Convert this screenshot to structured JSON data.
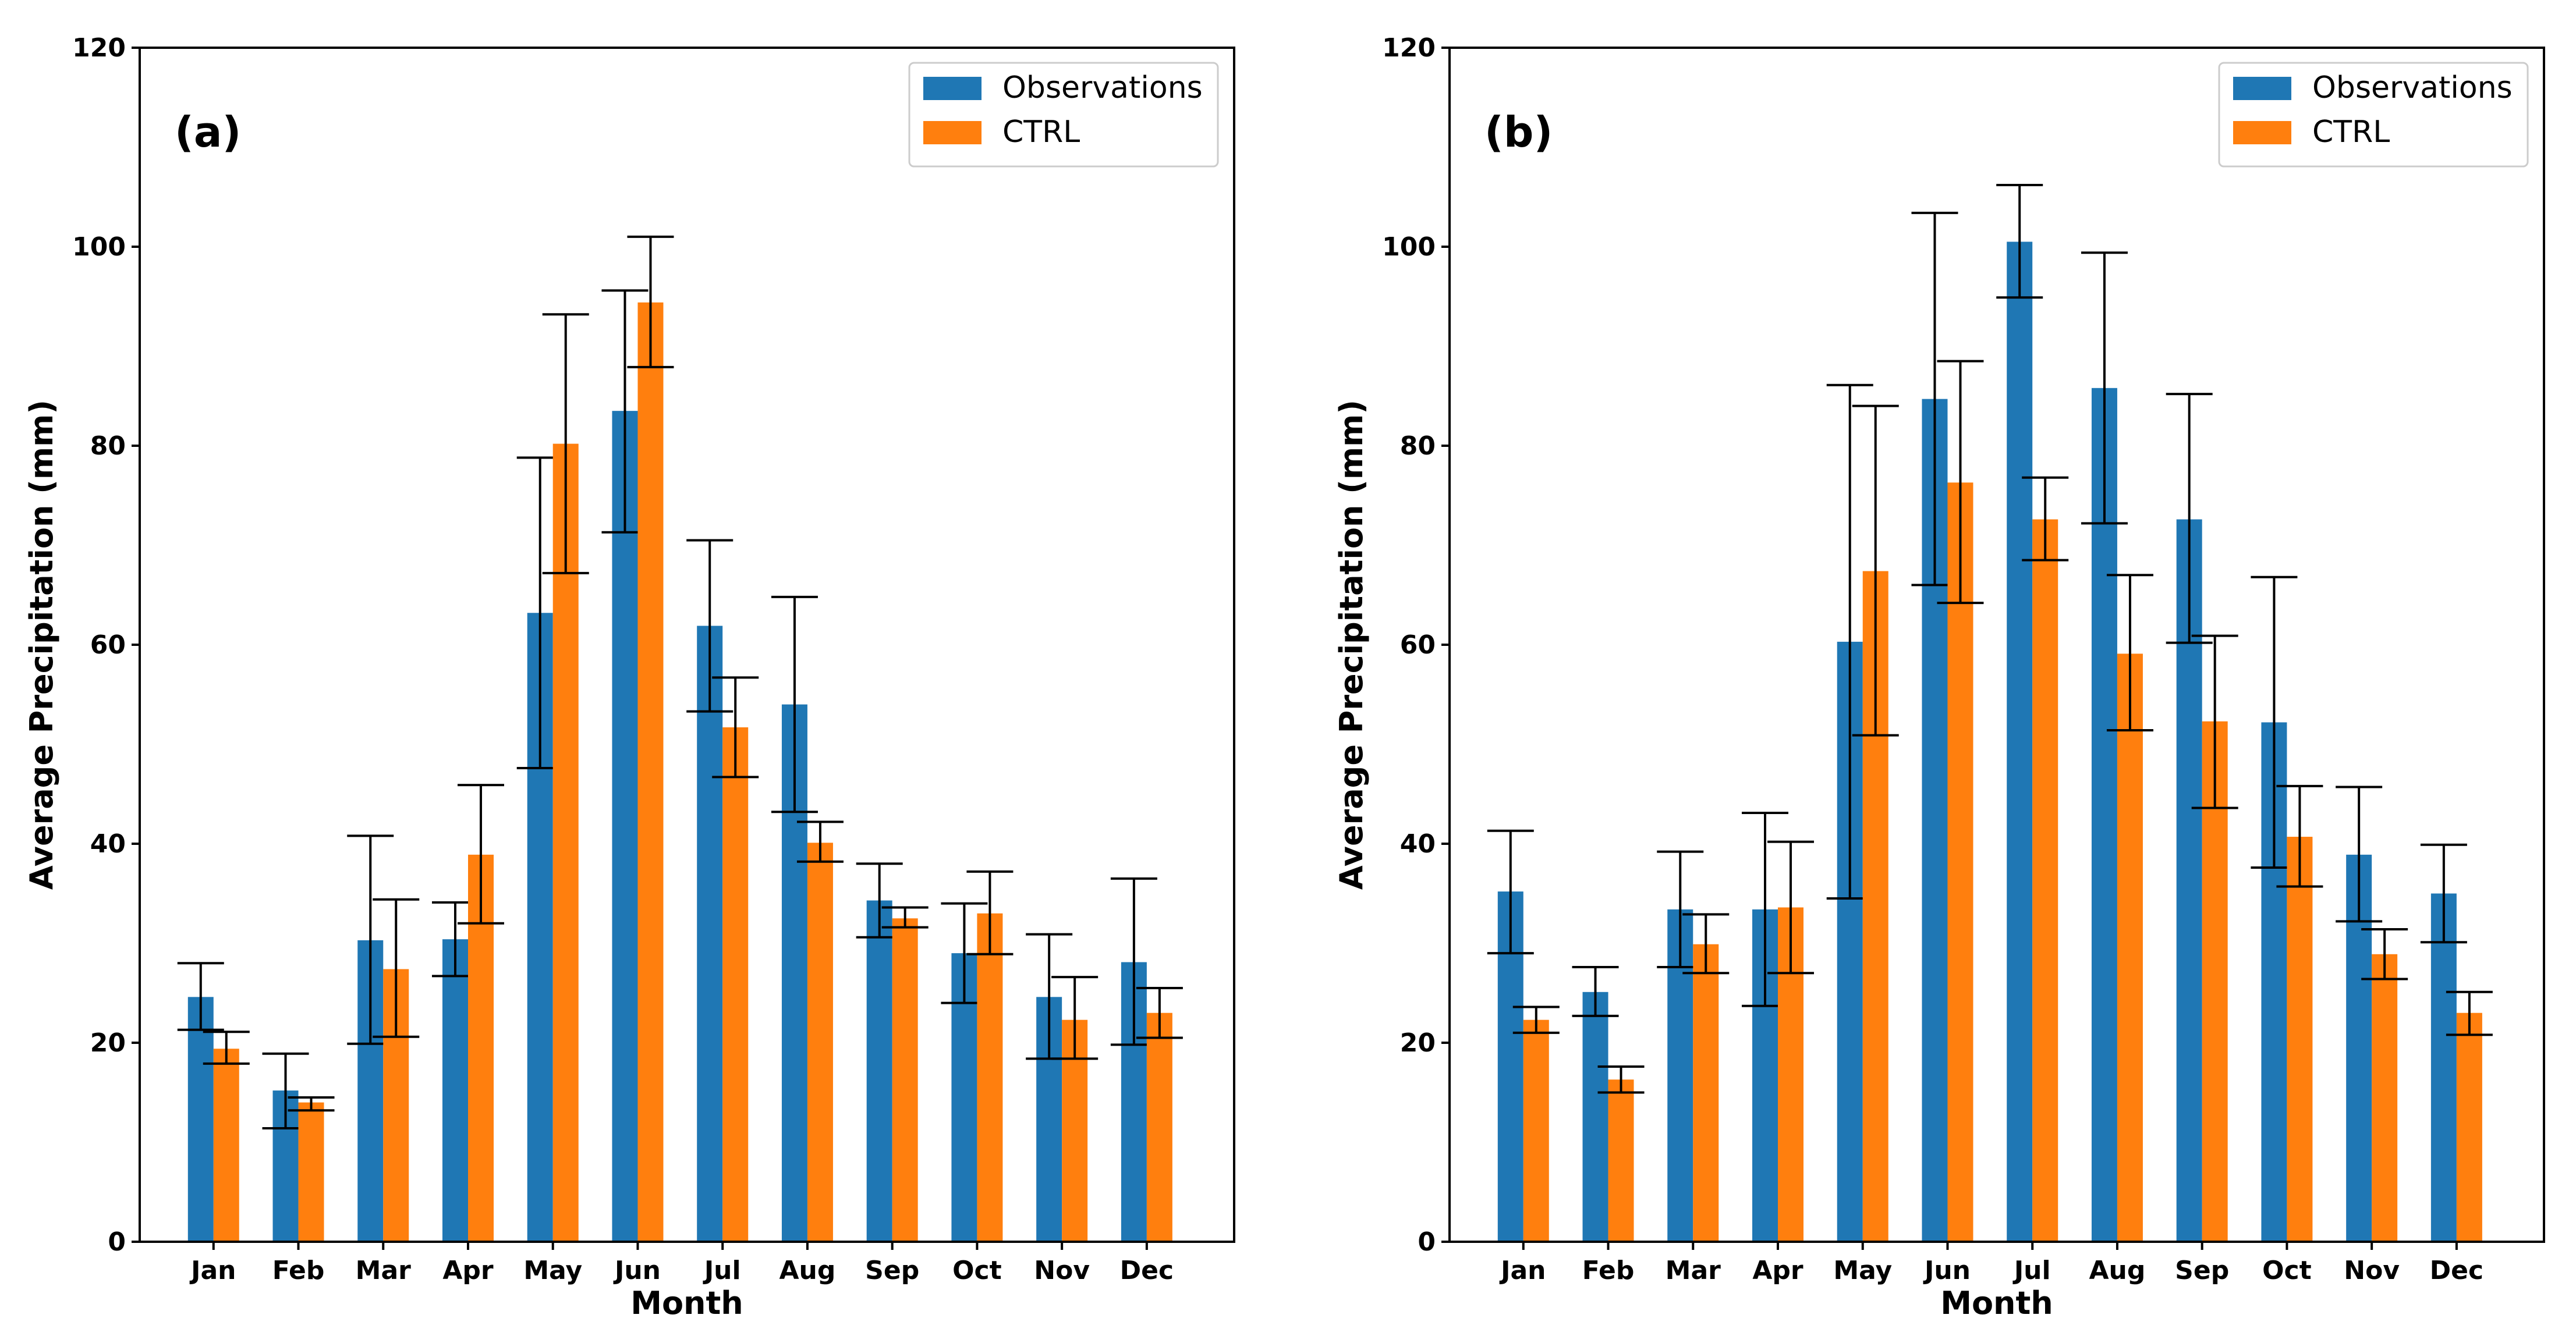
{
  "colors": {
    "observations": "#1f77b4",
    "ctrl": "#ff7f0e",
    "axis": "#000000",
    "error_bar": "#000000",
    "background": "#ffffff"
  },
  "chart_data": [
    {
      "type": "bar",
      "panel_label": "(a)",
      "xlabel": "Month",
      "ylabel": "Average Precipitation (mm)",
      "ylim": [
        0,
        120
      ],
      "yticks": [
        0,
        20,
        40,
        60,
        80,
        100,
        120
      ],
      "grid": false,
      "legend_position": "top-right",
      "categories": [
        "Jan",
        "Feb",
        "Mar",
        "Apr",
        "May",
        "Jun",
        "Jul",
        "Aug",
        "Sep",
        "Oct",
        "Nov",
        "Dec"
      ],
      "series": [
        {
          "name": "Observations",
          "color_key": "observations",
          "values": [
            24.6,
            15.2,
            30.3,
            30.4,
            63.2,
            83.5,
            61.9,
            54.0,
            34.3,
            29.0,
            24.6,
            28.1
          ],
          "err_low": [
            21.3,
            11.4,
            19.9,
            26.7,
            47.6,
            71.3,
            53.3,
            43.2,
            30.6,
            24.0,
            18.4,
            19.8
          ],
          "err_high": [
            28.0,
            18.9,
            40.8,
            34.1,
            78.8,
            95.6,
            70.5,
            64.8,
            38.0,
            34.0,
            30.9,
            36.5
          ]
        },
        {
          "name": "CTRL",
          "color_key": "ctrl",
          "values": [
            19.4,
            14.0,
            27.4,
            38.9,
            80.2,
            94.4,
            51.7,
            40.1,
            32.5,
            33.0,
            22.3,
            23.0
          ],
          "err_low": [
            17.9,
            13.2,
            20.6,
            32.0,
            67.2,
            87.9,
            46.7,
            38.2,
            31.6,
            28.9,
            18.4,
            20.5
          ],
          "err_high": [
            21.1,
            14.5,
            34.4,
            45.9,
            93.2,
            101.0,
            56.7,
            42.2,
            33.6,
            37.2,
            26.6,
            25.5
          ]
        }
      ]
    },
    {
      "type": "bar",
      "panel_label": "(b)",
      "xlabel": "Month",
      "ylabel": "Average Precipitation (mm)",
      "ylim": [
        0,
        120
      ],
      "yticks": [
        0,
        20,
        40,
        60,
        80,
        100,
        120
      ],
      "grid": false,
      "legend_position": "top-right",
      "categories": [
        "Jan",
        "Feb",
        "Mar",
        "Apr",
        "May",
        "Jun",
        "Jul",
        "Aug",
        "Sep",
        "Oct",
        "Nov",
        "Dec"
      ],
      "series": [
        {
          "name": "Observations",
          "color_key": "observations",
          "values": [
            35.2,
            25.1,
            33.4,
            33.4,
            60.3,
            84.7,
            100.5,
            85.8,
            72.6,
            52.2,
            38.9,
            35.0
          ],
          "err_low": [
            29.0,
            22.7,
            27.6,
            23.7,
            34.5,
            66.0,
            94.9,
            72.2,
            60.2,
            37.6,
            32.2,
            30.1
          ],
          "err_high": [
            41.3,
            27.6,
            39.2,
            43.1,
            86.1,
            103.4,
            106.2,
            99.4,
            85.2,
            66.8,
            45.7,
            39.9
          ]
        },
        {
          "name": "CTRL",
          "color_key": "ctrl",
          "values": [
            22.3,
            16.3,
            29.9,
            33.6,
            67.4,
            76.3,
            72.6,
            59.1,
            52.3,
            40.7,
            28.9,
            23.0
          ],
          "err_low": [
            21.0,
            15.0,
            27.0,
            27.0,
            50.9,
            64.2,
            68.5,
            51.4,
            43.6,
            35.7,
            26.4,
            20.8
          ],
          "err_high": [
            23.6,
            17.6,
            32.9,
            40.2,
            84.0,
            88.5,
            76.8,
            67.0,
            60.9,
            45.8,
            31.4,
            25.1
          ]
        }
      ]
    }
  ]
}
